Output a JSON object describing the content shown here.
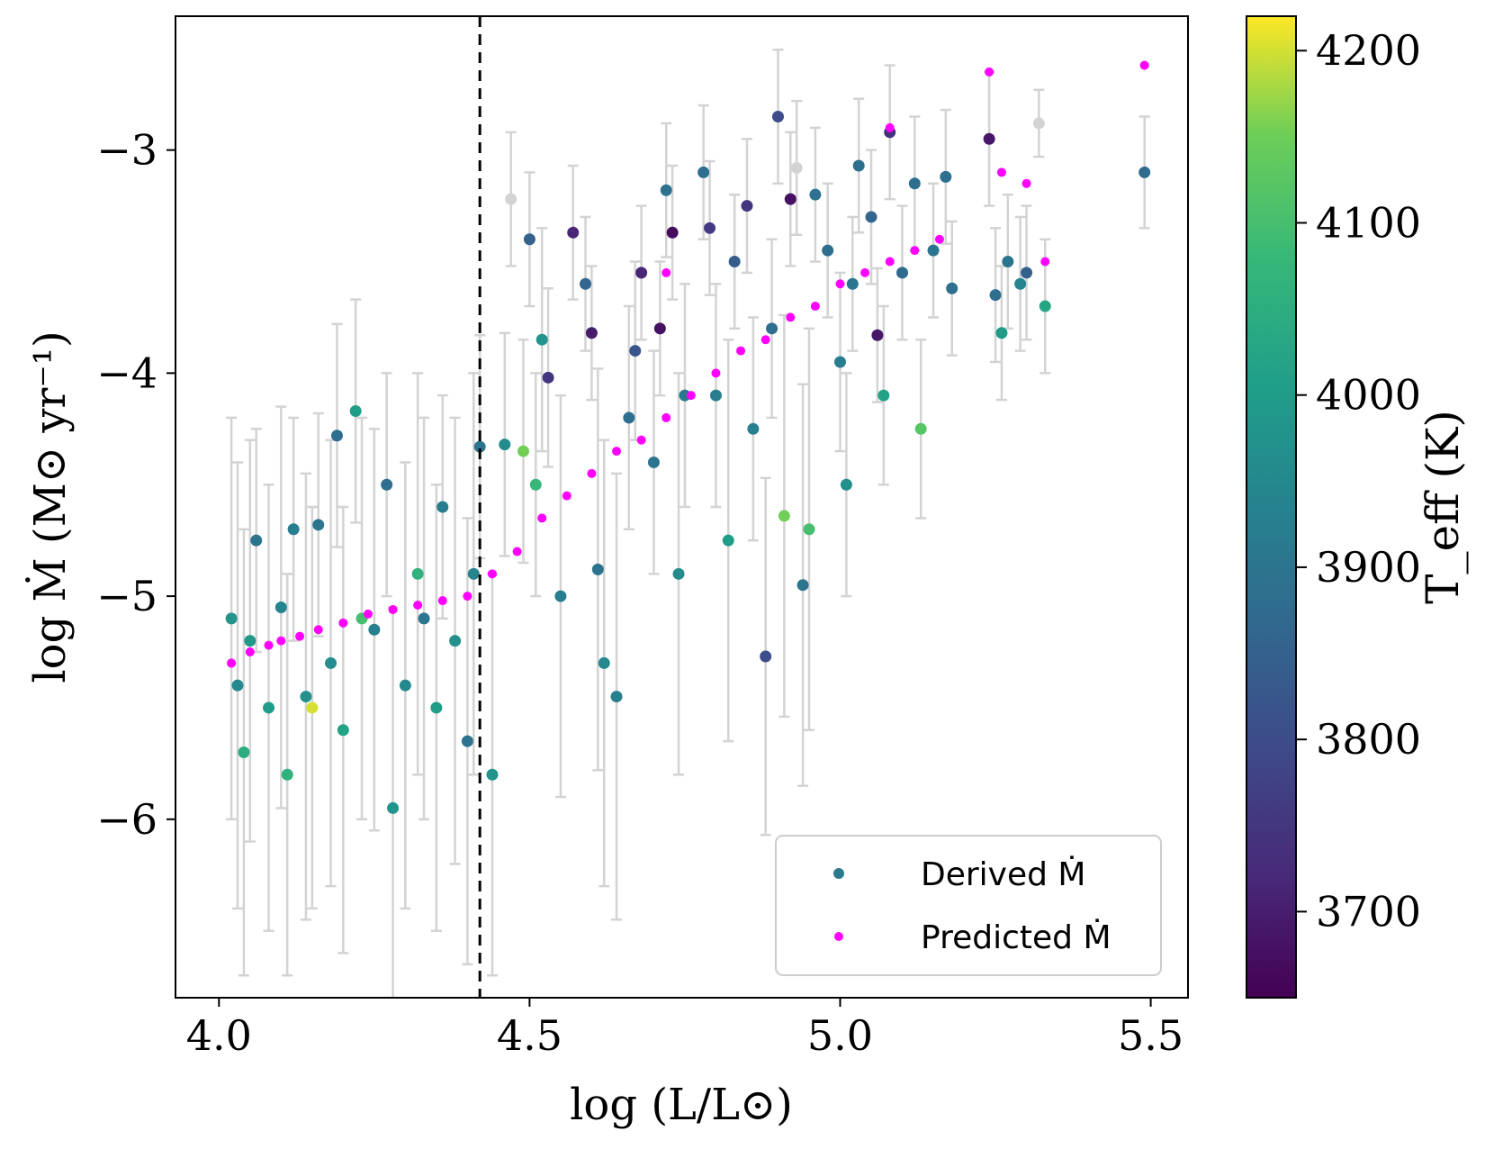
{
  "chart_data": {
    "type": "scatter",
    "xlabel": "log (L/L⊙)",
    "ylabel": "log Ṁ (M⊙ yr⁻¹)",
    "xlim": [
      3.93,
      5.56
    ],
    "ylim": [
      -6.8,
      -2.4
    ],
    "x_ticks": [
      4.0,
      4.5,
      5.0,
      5.5
    ],
    "x_tick_labels": [
      "4.0",
      "4.5",
      "5.0",
      "5.5"
    ],
    "y_ticks": [
      -6,
      -5,
      -4,
      -3
    ],
    "y_tick_labels": [
      "−6",
      "−5",
      "−4",
      "−3"
    ],
    "vline": {
      "x": 4.42,
      "style": "dashed",
      "color": "#000000"
    },
    "legend": {
      "placement": "lower-right",
      "entries": [
        {
          "label": "Derived Ṁ",
          "color": "#2a7a8c"
        },
        {
          "label": "Predicted Ṁ",
          "color": "#ff00ff"
        }
      ]
    },
    "colorbar": {
      "label": "T_eff (K)",
      "min": 3650,
      "max": 4220,
      "ticks": [
        3700,
        3800,
        3900,
        4000,
        4100,
        4200
      ],
      "tick_labels": [
        "3700",
        "3800",
        "3900",
        "4000",
        "4100",
        "4200"
      ],
      "colormap": "viridis"
    },
    "grid": false,
    "series": [
      {
        "name": "Derived Ṁ",
        "marker": "circle",
        "errorbar_color": "#d3d3d3",
        "points": [
          {
            "x": 4.02,
            "y": -5.1,
            "t": 3980,
            "e": 0.9
          },
          {
            "x": 4.03,
            "y": -5.4,
            "t": 3950,
            "e": 1.0
          },
          {
            "x": 4.04,
            "y": -5.7,
            "t": 4050,
            "e": 1.0
          },
          {
            "x": 4.05,
            "y": -5.2,
            "t": 3990,
            "e": 0.9
          },
          {
            "x": 4.06,
            "y": -4.75,
            "t": 3900,
            "e": 0.5
          },
          {
            "x": 4.08,
            "y": -5.5,
            "t": 4000,
            "e": 1.0
          },
          {
            "x": 4.1,
            "y": -5.05,
            "t": 3940,
            "e": 0.9
          },
          {
            "x": 4.11,
            "y": -5.8,
            "t": 4060,
            "e": 0.9
          },
          {
            "x": 4.12,
            "y": -4.7,
            "t": 3920,
            "e": 0.5
          },
          {
            "x": 4.14,
            "y": -5.45,
            "t": 3970,
            "e": 1.0
          },
          {
            "x": 4.15,
            "y": -5.5,
            "t": 4200,
            "e": 0.9
          },
          {
            "x": 4.16,
            "y": -4.68,
            "t": 3900,
            "e": 0.5
          },
          {
            "x": 4.18,
            "y": -5.3,
            "t": 3960,
            "e": 1.0
          },
          {
            "x": 4.19,
            "y": -4.28,
            "t": 3880,
            "e": 0.5
          },
          {
            "x": 4.2,
            "y": -5.6,
            "t": 4020,
            "e": 1.0
          },
          {
            "x": 4.22,
            "y": -4.17,
            "t": 4010,
            "e": 0.5
          },
          {
            "x": 4.23,
            "y": -5.1,
            "t": 4100,
            "e": 0.9
          },
          {
            "x": 4.25,
            "y": -5.15,
            "t": 3930,
            "e": 0.9
          },
          {
            "x": 4.27,
            "y": -4.5,
            "t": 3880,
            "e": 0.5
          },
          {
            "x": 4.28,
            "y": -5.95,
            "t": 3980,
            "e": 0.9
          },
          {
            "x": 4.3,
            "y": -5.4,
            "t": 3950,
            "e": 1.0
          },
          {
            "x": 4.32,
            "y": -4.9,
            "t": 4060,
            "e": 0.9
          },
          {
            "x": 4.33,
            "y": -5.1,
            "t": 3900,
            "e": 0.9
          },
          {
            "x": 4.35,
            "y": -5.5,
            "t": 4000,
            "e": 1.0
          },
          {
            "x": 4.36,
            "y": -4.6,
            "t": 3920,
            "e": 0.5
          },
          {
            "x": 4.38,
            "y": -5.2,
            "t": 3970,
            "e": 1.0
          },
          {
            "x": 4.4,
            "y": -5.65,
            "t": 3890,
            "e": 1.0
          },
          {
            "x": 4.41,
            "y": -4.9,
            "t": 3940,
            "e": 0.9
          },
          {
            "x": 4.42,
            "y": -4.33,
            "t": 3900,
            "e": 0.5
          },
          {
            "x": 4.44,
            "y": -5.8,
            "t": 3980,
            "e": 0.9
          },
          {
            "x": 4.46,
            "y": -4.32,
            "t": 3960,
            "e": 0.5
          },
          {
            "x": 4.47,
            "y": -3.22,
            "t": 3600,
            "e": 0.3
          },
          {
            "x": 4.49,
            "y": -4.35,
            "t": 4150,
            "e": 0.5
          },
          {
            "x": 4.5,
            "y": -3.4,
            "t": 3850,
            "e": 0.3
          },
          {
            "x": 4.51,
            "y": -4.5,
            "t": 4080,
            "e": 0.5
          },
          {
            "x": 4.52,
            "y": -3.85,
            "t": 3980,
            "e": 0.5
          },
          {
            "x": 4.53,
            "y": -4.02,
            "t": 3750,
            "e": 0.4
          },
          {
            "x": 4.55,
            "y": -5.0,
            "t": 3920,
            "e": 0.9
          },
          {
            "x": 4.57,
            "y": -3.37,
            "t": 3720,
            "e": 0.3
          },
          {
            "x": 4.59,
            "y": -3.6,
            "t": 3860,
            "e": 0.3
          },
          {
            "x": 4.6,
            "y": -3.82,
            "t": 3700,
            "e": 0.3
          },
          {
            "x": 4.61,
            "y": -4.88,
            "t": 3890,
            "e": 0.9
          },
          {
            "x": 4.62,
            "y": -5.3,
            "t": 3950,
            "e": 1.0
          },
          {
            "x": 4.64,
            "y": -5.45,
            "t": 3930,
            "e": 1.0
          },
          {
            "x": 4.66,
            "y": -4.2,
            "t": 3880,
            "e": 0.5
          },
          {
            "x": 4.67,
            "y": -3.9,
            "t": 3820,
            "e": 0.4
          },
          {
            "x": 4.68,
            "y": -3.55,
            "t": 3720,
            "e": 0.3
          },
          {
            "x": 4.7,
            "y": -4.4,
            "t": 3900,
            "e": 0.5
          },
          {
            "x": 4.71,
            "y": -3.8,
            "t": 3680,
            "e": 0.3
          },
          {
            "x": 4.72,
            "y": -3.18,
            "t": 3890,
            "e": 0.3
          },
          {
            "x": 4.73,
            "y": -3.37,
            "t": 3670,
            "e": 0.3
          },
          {
            "x": 4.74,
            "y": -4.9,
            "t": 3960,
            "e": 0.9
          },
          {
            "x": 4.75,
            "y": -4.1,
            "t": 3910,
            "e": 0.5
          },
          {
            "x": 4.78,
            "y": -3.1,
            "t": 3880,
            "e": 0.3
          },
          {
            "x": 4.79,
            "y": -3.35,
            "t": 3760,
            "e": 0.3
          },
          {
            "x": 4.8,
            "y": -4.1,
            "t": 3920,
            "e": 0.5
          },
          {
            "x": 4.82,
            "y": -4.75,
            "t": 4000,
            "e": 0.9
          },
          {
            "x": 4.83,
            "y": -3.5,
            "t": 3840,
            "e": 0.3
          },
          {
            "x": 4.85,
            "y": -3.25,
            "t": 3750,
            "e": 0.3
          },
          {
            "x": 4.86,
            "y": -4.25,
            "t": 3930,
            "e": 0.5
          },
          {
            "x": 4.88,
            "y": -5.27,
            "t": 3800,
            "e": 0.8
          },
          {
            "x": 4.89,
            "y": -3.8,
            "t": 3880,
            "e": 0.4
          },
          {
            "x": 4.9,
            "y": -2.85,
            "t": 3800,
            "e": 0.3
          },
          {
            "x": 4.91,
            "y": -4.64,
            "t": 4150,
            "e": 0.9
          },
          {
            "x": 4.92,
            "y": -3.22,
            "t": 3680,
            "e": 0.3
          },
          {
            "x": 4.93,
            "y": -3.08,
            "t": 3620,
            "e": 0.3
          },
          {
            "x": 4.94,
            "y": -4.95,
            "t": 3900,
            "e": 0.9
          },
          {
            "x": 4.95,
            "y": -4.7,
            "t": 4100,
            "e": 0.9
          },
          {
            "x": 4.96,
            "y": -3.2,
            "t": 3890,
            "e": 0.3
          },
          {
            "x": 4.98,
            "y": -3.45,
            "t": 3880,
            "e": 0.3
          },
          {
            "x": 5.0,
            "y": -3.95,
            "t": 3920,
            "e": 0.4
          },
          {
            "x": 5.01,
            "y": -4.5,
            "t": 3970,
            "e": 0.5
          },
          {
            "x": 5.02,
            "y": -3.6,
            "t": 3900,
            "e": 0.3
          },
          {
            "x": 5.03,
            "y": -3.07,
            "t": 3880,
            "e": 0.3
          },
          {
            "x": 5.05,
            "y": -3.3,
            "t": 3860,
            "e": 0.3
          },
          {
            "x": 5.06,
            "y": -3.83,
            "t": 3690,
            "e": 0.3
          },
          {
            "x": 5.07,
            "y": -4.1,
            "t": 4020,
            "e": 0.4
          },
          {
            "x": 5.08,
            "y": -2.92,
            "t": 3740,
            "e": 0.3
          },
          {
            "x": 5.1,
            "y": -3.55,
            "t": 3870,
            "e": 0.3
          },
          {
            "x": 5.12,
            "y": -3.15,
            "t": 3880,
            "e": 0.3
          },
          {
            "x": 5.13,
            "y": -4.25,
            "t": 4120,
            "e": 0.4
          },
          {
            "x": 5.15,
            "y": -3.45,
            "t": 3900,
            "e": 0.3
          },
          {
            "x": 5.17,
            "y": -3.12,
            "t": 3880,
            "e": 0.3
          },
          {
            "x": 5.18,
            "y": -3.62,
            "t": 3880,
            "e": 0.3
          },
          {
            "x": 5.24,
            "y": -2.95,
            "t": 3690,
            "e": 0.3
          },
          {
            "x": 5.25,
            "y": -3.65,
            "t": 3880,
            "e": 0.3
          },
          {
            "x": 5.26,
            "y": -3.82,
            "t": 4000,
            "e": 0.3
          },
          {
            "x": 5.27,
            "y": -3.5,
            "t": 3900,
            "e": 0.3
          },
          {
            "x": 5.29,
            "y": -3.6,
            "t": 3940,
            "e": 0.3
          },
          {
            "x": 5.3,
            "y": -3.55,
            "t": 3850,
            "e": 0.3
          },
          {
            "x": 5.32,
            "y": -2.88,
            "t": 3600,
            "e": 0.15
          },
          {
            "x": 5.33,
            "y": -3.7,
            "t": 4030,
            "e": 0.3
          },
          {
            "x": 5.49,
            "y": -3.1,
            "t": 3870,
            "e": 0.25
          }
        ]
      },
      {
        "name": "Predicted Ṁ",
        "marker": "circle",
        "color": "#ff00ff",
        "points": [
          {
            "x": 4.02,
            "y": -5.3
          },
          {
            "x": 4.05,
            "y": -5.25
          },
          {
            "x": 4.08,
            "y": -5.22
          },
          {
            "x": 4.1,
            "y": -5.2
          },
          {
            "x": 4.13,
            "y": -5.18
          },
          {
            "x": 4.16,
            "y": -5.15
          },
          {
            "x": 4.2,
            "y": -5.12
          },
          {
            "x": 4.24,
            "y": -5.08
          },
          {
            "x": 4.28,
            "y": -5.06
          },
          {
            "x": 4.32,
            "y": -5.04
          },
          {
            "x": 4.36,
            "y": -5.02
          },
          {
            "x": 4.4,
            "y": -5.0
          },
          {
            "x": 4.44,
            "y": -4.9
          },
          {
            "x": 4.48,
            "y": -4.8
          },
          {
            "x": 4.52,
            "y": -4.65
          },
          {
            "x": 4.56,
            "y": -4.55
          },
          {
            "x": 4.6,
            "y": -4.45
          },
          {
            "x": 4.64,
            "y": -4.35
          },
          {
            "x": 4.68,
            "y": -4.3
          },
          {
            "x": 4.72,
            "y": -4.2
          },
          {
            "x": 4.76,
            "y": -4.1
          },
          {
            "x": 4.8,
            "y": -4.0
          },
          {
            "x": 4.84,
            "y": -3.9
          },
          {
            "x": 4.88,
            "y": -3.85
          },
          {
            "x": 4.92,
            "y": -3.75
          },
          {
            "x": 4.96,
            "y": -3.7
          },
          {
            "x": 5.0,
            "y": -3.6
          },
          {
            "x": 5.04,
            "y": -3.55
          },
          {
            "x": 5.08,
            "y": -3.5
          },
          {
            "x": 5.12,
            "y": -3.45
          },
          {
            "x": 5.16,
            "y": -3.4
          },
          {
            "x": 5.24,
            "y": -2.65
          },
          {
            "x": 5.26,
            "y": -3.1
          },
          {
            "x": 5.3,
            "y": -3.15
          },
          {
            "x": 5.33,
            "y": -3.5
          },
          {
            "x": 5.49,
            "y": -2.62
          },
          {
            "x": 5.08,
            "y": -2.9
          },
          {
            "x": 4.72,
            "y": -3.55
          }
        ]
      }
    ]
  }
}
